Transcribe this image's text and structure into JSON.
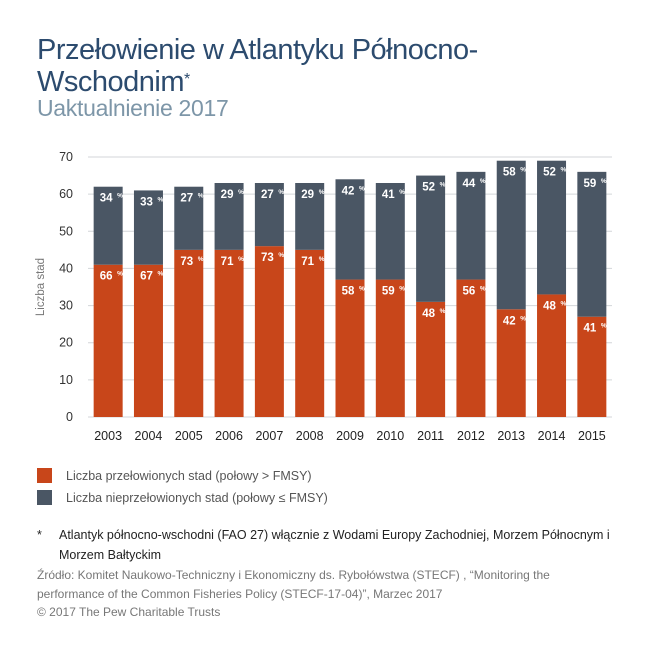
{
  "title": "Przełowienie w Atlantyku Północno-Wschodnim",
  "title_marker": "*",
  "subtitle": "Uaktualnienie 2017",
  "chart_data": {
    "type": "bar",
    "stacked": true,
    "ylabel": "Liczba stad",
    "xlabel": "",
    "ylim": [
      0,
      70
    ],
    "yticks": [
      0,
      10,
      20,
      30,
      40,
      50,
      60,
      70
    ],
    "grid": true,
    "categories": [
      "2003",
      "2004",
      "2005",
      "2006",
      "2007",
      "2008",
      "2009",
      "2010",
      "2011",
      "2012",
      "2013",
      "2014",
      "2015"
    ],
    "series": [
      {
        "name": "Liczba przełowionych stad (połowy > FMSY)",
        "color": "#c8461a",
        "values": [
          41,
          41,
          45,
          45,
          46,
          45,
          37,
          37,
          31,
          37,
          29,
          33,
          27
        ],
        "percent_labels": [
          "66",
          "67",
          "73",
          "71",
          "73",
          "71",
          "58",
          "59",
          "48",
          "56",
          "42",
          "48",
          "41"
        ]
      },
      {
        "name": "Liczba nieprzełowionych stad (połowy ≤ FMSY)",
        "color": "#4a5664",
        "values": [
          21,
          20,
          17,
          18,
          17,
          18,
          27,
          26,
          34,
          29,
          40,
          36,
          39
        ],
        "percent_labels": [
          "34",
          "33",
          "27",
          "29",
          "27",
          "29",
          "42",
          "41",
          "52",
          "44",
          "58",
          "52",
          "59"
        ]
      }
    ],
    "percent_suffix": "%"
  },
  "legend": [
    {
      "label": "Liczba przełowionych stad (połowy > FMSY)",
      "color": "#c8461a"
    },
    {
      "label": "Liczba nieprzełowionych stad (połowy ≤ FMSY)",
      "color": "#4a5664"
    }
  ],
  "footnote": {
    "marker": "*",
    "text": "Atlantyk północno-wschodni (FAO 27) włącznie z Wodami Europy Zachodniej, Morzem Północnym i Morzem Bałtyckim"
  },
  "source": "Źródło: Komitet Naukowo-Techniczny i Ekonomiczny ds. Rybołówstwa (STECF) , “Monitoring the performance of the Common Fisheries Policy (STECF-17-04)”, Marzec 2017",
  "copyright": "© 2017 The Pew Charitable Trusts"
}
